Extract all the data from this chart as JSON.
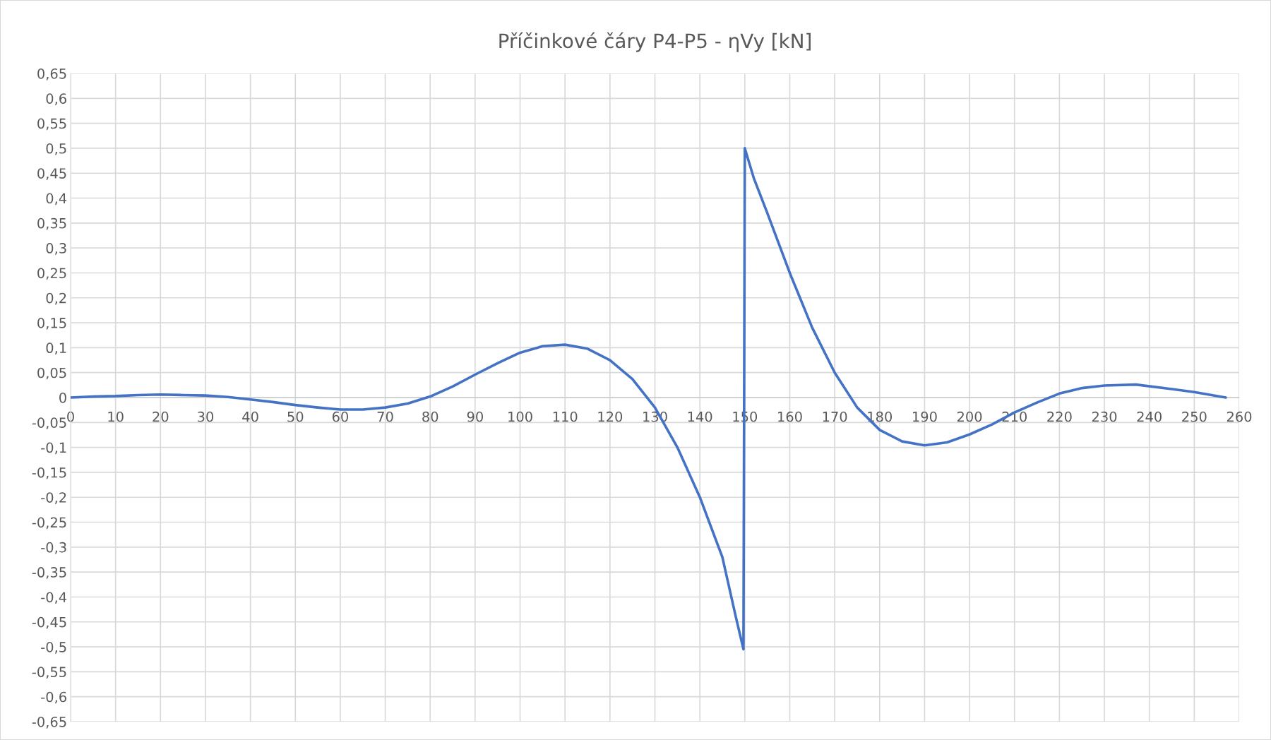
{
  "chart_data": {
    "type": "line",
    "title": "Příčinkové čáry P4-P5 - ηVy [kN]",
    "series": [
      {
        "color": "#4472c4",
        "x": [
          0,
          5,
          10,
          15,
          20,
          25,
          30,
          35,
          40,
          45,
          50,
          55,
          60,
          65,
          70,
          75,
          80,
          85,
          90,
          95,
          100,
          105,
          110,
          115,
          120,
          125,
          130,
          135,
          140,
          145,
          148,
          149.7,
          150,
          152,
          155,
          160,
          165,
          170,
          175,
          180,
          185,
          190,
          195,
          200,
          205,
          210,
          215,
          220,
          225,
          230,
          237,
          245,
          250,
          257
        ],
        "values": [
          0,
          0.002,
          0.003,
          0.005,
          0.006,
          0.005,
          0.004,
          0.001,
          -0.004,
          -0.009,
          -0.015,
          -0.02,
          -0.024,
          -0.024,
          -0.02,
          -0.012,
          0.002,
          0.022,
          0.046,
          0.069,
          0.09,
          0.103,
          0.106,
          0.098,
          0.075,
          0.037,
          -0.02,
          -0.1,
          -0.2,
          -0.32,
          -0.44,
          -0.505,
          0.5,
          0.44,
          0.37,
          0.25,
          0.14,
          0.05,
          -0.02,
          -0.065,
          -0.088,
          -0.096,
          -0.09,
          -0.074,
          -0.054,
          -0.03,
          -0.01,
          0.008,
          0.019,
          0.024,
          0.026,
          0.017,
          0.011,
          0
        ]
      }
    ],
    "xlim": [
      0,
      260
    ],
    "xticks": [
      0,
      10,
      20,
      30,
      40,
      50,
      60,
      70,
      80,
      90,
      100,
      110,
      120,
      130,
      140,
      150,
      160,
      170,
      180,
      190,
      200,
      210,
      220,
      230,
      240,
      250,
      260
    ],
    "ylim": [
      -0.65,
      0.65
    ],
    "yticks": [
      {
        "value": -0.65,
        "label": "-0,65"
      },
      {
        "value": -0.6,
        "label": "-0,6"
      },
      {
        "value": -0.55,
        "label": "-0,55"
      },
      {
        "value": -0.5,
        "label": "-0,5"
      },
      {
        "value": -0.45,
        "label": "-0,45"
      },
      {
        "value": -0.4,
        "label": "-0,4"
      },
      {
        "value": -0.35,
        "label": "-0,35"
      },
      {
        "value": -0.3,
        "label": "-0,3"
      },
      {
        "value": -0.25,
        "label": "-0,25"
      },
      {
        "value": -0.2,
        "label": "-0,2"
      },
      {
        "value": -0.15,
        "label": "-0,15"
      },
      {
        "value": -0.1,
        "label": "-0,1"
      },
      {
        "value": -0.05,
        "label": "-0,05"
      },
      0,
      {
        "value": 0.05,
        "label": "0,05"
      },
      {
        "value": 0.1,
        "label": "0,1"
      },
      {
        "value": 0.15,
        "label": "0,15"
      },
      {
        "value": 0.2,
        "label": "0,2"
      },
      {
        "value": 0.25,
        "label": "0,25"
      },
      {
        "value": 0.3,
        "label": "0,3"
      },
      {
        "value": 0.35,
        "label": "0,35"
      },
      {
        "value": 0.4,
        "label": "0,4"
      },
      {
        "value": 0.45,
        "label": "0,45"
      },
      {
        "value": 0.5,
        "label": "0,5"
      },
      {
        "value": 0.55,
        "label": "0,55"
      },
      {
        "value": 0.6,
        "label": "0,6"
      },
      {
        "value": 0.65,
        "label": "0,65"
      }
    ],
    "grid": true,
    "marker": "none",
    "line_style": "solid",
    "legend": false
  }
}
